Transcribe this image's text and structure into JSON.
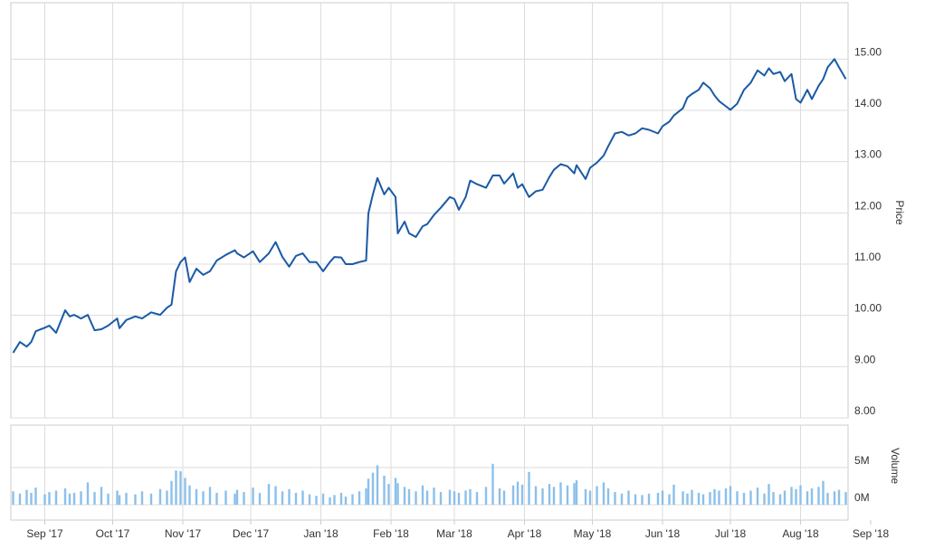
{
  "chart_data": {
    "type": "line",
    "x": [
      -14,
      -11,
      -8,
      -6,
      -4,
      0,
      2,
      5,
      9,
      11,
      13,
      16,
      19,
      22,
      25,
      28,
      32,
      33,
      36,
      40,
      43,
      47,
      51,
      54,
      56,
      58,
      60,
      62,
      64,
      67,
      70,
      73,
      76,
      80,
      84,
      85,
      88,
      92,
      95,
      99,
      102,
      105,
      108,
      111,
      114,
      117,
      120,
      123,
      126,
      128,
      131,
      133,
      136,
      139,
      142,
      143,
      145,
      147,
      150,
      152,
      155,
      156,
      159,
      161,
      164,
      167,
      169,
      172,
      175,
      179,
      181,
      183,
      186,
      188,
      191,
      195,
      198,
      201,
      203,
      207,
      209,
      211,
      214,
      217,
      220,
      223,
      225,
      228,
      231,
      234,
      235,
      239,
      241,
      244,
      247,
      249,
      252,
      255,
      258,
      261,
      264,
      267,
      271,
      273,
      276,
      278,
      282,
      284,
      286,
      289,
      291,
      294,
      296,
      298,
      301,
      303,
      306,
      309,
      312,
      315,
      318,
      320,
      322,
      325,
      327,
      330,
      332,
      334,
      337,
      339,
      342,
      344,
      346,
      349,
      351,
      354
    ],
    "xlim": [
      -15,
      355
    ],
    "xticks": [
      {
        "value": 0,
        "label": "Sep '17"
      },
      {
        "value": 30,
        "label": "Oct '17"
      },
      {
        "value": 61,
        "label": "Nov '17"
      },
      {
        "value": 91,
        "label": "Dec '17"
      },
      {
        "value": 122,
        "label": "Jan '18"
      },
      {
        "value": 153,
        "label": "Feb '18"
      },
      {
        "value": 181,
        "label": "Mar '18"
      },
      {
        "value": 212,
        "label": "Apr '18"
      },
      {
        "value": 242,
        "label": "May '18"
      },
      {
        "value": 273,
        "label": "Jun '18"
      },
      {
        "value": 303,
        "label": "Jul '18"
      },
      {
        "value": 334,
        "label": "Aug '18"
      },
      {
        "value": 365,
        "label": "Sep '18"
      }
    ],
    "ylabel": "Price",
    "ylim": [
      8,
      16.1
    ],
    "yticks": [
      {
        "value": 8,
        "label": "8.00"
      },
      {
        "value": 9,
        "label": "9.00"
      },
      {
        "value": 10,
        "label": "10.00"
      },
      {
        "value": 11,
        "label": "11.00"
      },
      {
        "value": 12,
        "label": "12.00"
      },
      {
        "value": 13,
        "label": "13.00"
      },
      {
        "value": 14,
        "label": "14.00"
      },
      {
        "value": 15,
        "label": "15.00"
      }
    ],
    "color": "#1a5aa5",
    "values": [
      9.27,
      9.48,
      9.39,
      9.48,
      9.69,
      9.76,
      9.8,
      9.66,
      10.1,
      9.98,
      10.01,
      9.94,
      10.01,
      9.71,
      9.73,
      9.8,
      9.94,
      9.75,
      9.91,
      9.98,
      9.94,
      10.06,
      10.01,
      10.15,
      10.21,
      10.86,
      11.04,
      11.13,
      10.65,
      10.91,
      10.79,
      10.86,
      11.07,
      11.18,
      11.27,
      11.21,
      11.13,
      11.25,
      11.04,
      11.21,
      11.43,
      11.14,
      10.95,
      11.16,
      11.21,
      11.04,
      11.04,
      10.86,
      11.04,
      11.14,
      11.13,
      11.0,
      11.0,
      11.04,
      11.07,
      11.99,
      12.36,
      12.68,
      12.36,
      12.49,
      12.31,
      11.6,
      11.83,
      11.6,
      11.53,
      11.74,
      11.78,
      11.96,
      12.1,
      12.31,
      12.27,
      12.06,
      12.31,
      12.63,
      12.56,
      12.49,
      12.73,
      12.73,
      12.57,
      12.77,
      12.49,
      12.56,
      12.31,
      12.42,
      12.45,
      12.7,
      12.84,
      12.95,
      12.91,
      12.77,
      12.93,
      12.66,
      12.88,
      12.98,
      13.12,
      13.3,
      13.55,
      13.58,
      13.51,
      13.55,
      13.65,
      13.62,
      13.55,
      13.69,
      13.78,
      13.9,
      14.04,
      14.25,
      14.32,
      14.4,
      14.54,
      14.43,
      14.29,
      14.18,
      14.08,
      14.01,
      14.13,
      14.4,
      14.54,
      14.78,
      14.68,
      14.82,
      14.71,
      14.75,
      14.57,
      14.71,
      14.22,
      14.15,
      14.4,
      14.22,
      14.48,
      14.61,
      14.84,
      15.0,
      14.84,
      14.61
    ],
    "volume": {
      "label": "Volume",
      "color": "#8cc0ea",
      "ylim": [
        0,
        10.7
      ],
      "yticks": [
        {
          "value": 0,
          "label": "0M"
        },
        {
          "value": 5,
          "label": "5M"
        }
      ],
      "values": [
        1.8,
        1.5,
        2.0,
        1.6,
        2.3,
        1.4,
        1.7,
        1.9,
        2.2,
        1.5,
        1.6,
        1.8,
        3.0,
        1.7,
        2.4,
        1.5,
        1.9,
        1.3,
        1.6,
        1.4,
        1.8,
        1.5,
        2.1,
        1.9,
        3.2,
        4.6,
        4.5,
        3.6,
        2.6,
        2.1,
        1.8,
        2.4,
        1.6,
        1.9,
        1.5,
        2.0,
        1.7,
        2.3,
        1.6,
        2.8,
        2.5,
        1.8,
        2.1,
        1.6,
        1.9,
        1.4,
        1.2,
        1.5,
        1.0,
        1.3,
        1.6,
        1.1,
        1.4,
        1.8,
        2.2,
        3.5,
        4.3,
        5.3,
        3.9,
        2.8,
        3.6,
        2.9,
        2.4,
        2.1,
        1.8,
        2.6,
        1.9,
        2.3,
        1.7,
        2.0,
        1.8,
        1.6,
        1.9,
        2.1,
        1.7,
        2.4,
        5.5,
        2.2,
        1.9,
        2.6,
        3.1,
        2.7,
        4.4,
        2.5,
        2.2,
        2.8,
        2.4,
        3.0,
        2.6,
        2.9,
        3.3,
        2.1,
        1.9,
        2.5,
        3.0,
        2.2,
        1.7,
        1.5,
        1.9,
        1.4,
        1.3,
        1.5,
        1.6,
        1.9,
        1.4,
        2.7,
        1.8,
        1.5,
        2.0,
        1.6,
        1.4,
        1.7,
        2.1,
        1.9,
        2.2,
        2.5,
        1.8,
        1.6,
        1.9,
        2.3,
        1.5,
        2.8,
        1.7,
        1.4,
        1.9,
        2.4,
        2.1,
        2.6,
        1.8,
        2.2,
        2.4,
        3.2,
        1.6,
        1.8,
        2.0,
        1.7
      ]
    },
    "grid": true
  }
}
